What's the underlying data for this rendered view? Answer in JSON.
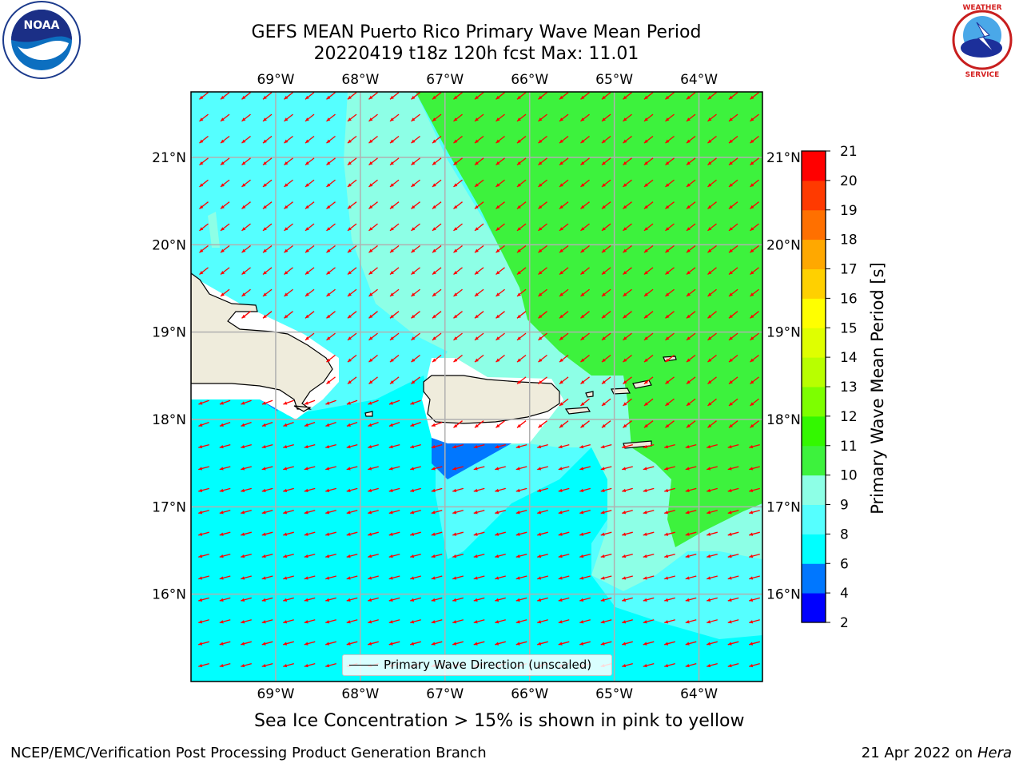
{
  "title": {
    "line1": "GEFS MEAN Puerto Rico Primary Wave Mean Period",
    "line2": "20220419 t18z 120h fcst   Max: 11.01"
  },
  "logos": {
    "left": {
      "icon": "noaa-logo",
      "text": "NOAA"
    },
    "right": {
      "icon": "national-weather-service-logo",
      "text": "NATIONAL WEATHER SERVICE"
    }
  },
  "axes": {
    "lon_ticks": [
      "69°W",
      "68°W",
      "67°W",
      "66°W",
      "65°W",
      "64°W"
    ],
    "lat_ticks": [
      "21°N",
      "20°N",
      "19°N",
      "18°N",
      "17°N",
      "16°N"
    ],
    "lon_values": [
      -69,
      -68,
      -67,
      -66,
      -65,
      -64
    ],
    "lat_values": [
      21,
      20,
      19,
      18,
      17,
      16
    ],
    "lon_range": [
      -70,
      -63.25
    ],
    "lat_range": [
      15,
      21.75
    ],
    "grid": true
  },
  "legend": {
    "label": "Primary Wave Direction (unscaled)"
  },
  "colorbar": {
    "label": "Primary Wave Mean Period [s]",
    "levels": [
      2,
      4,
      6,
      8,
      9,
      10,
      11,
      12,
      13,
      14,
      15,
      16,
      17,
      18,
      19,
      20,
      21
    ],
    "tick_labels": [
      "2",
      "4",
      "6",
      "8",
      "9",
      "10",
      "11",
      "12",
      "13",
      "14",
      "15",
      "16",
      "17",
      "18",
      "19",
      "20",
      "21"
    ],
    "colors": [
      "#0000ff",
      "#0077ff",
      "#00ffff",
      "#55ffff",
      "#8dffe6",
      "#3df23d",
      "#33f800",
      "#7dff00",
      "#b8ff00",
      "#dfff00",
      "#ffff00",
      "#ffd000",
      "#ffa800",
      "#ff7000",
      "#ff3a00",
      "#ff0000"
    ]
  },
  "map_colors": {
    "period_8_9": "#55ffff",
    "period_6_8": "#00ffff",
    "period_9_10": "#8dffe6",
    "period_10_11": "#3df23d",
    "period_4_6": "#0077ff",
    "land": "#efecdc",
    "arrow": "#ff0000",
    "grid": "#b0b0b0"
  },
  "footer": {
    "sea_ice_note": "Sea Ice Concentration > 15% is shown in pink to yellow",
    "credit": "NCEP/EMC/Verification Post Processing Product Generation Branch",
    "date_prefix": "21 Apr 2022 on ",
    "date_machine": "Hera"
  }
}
